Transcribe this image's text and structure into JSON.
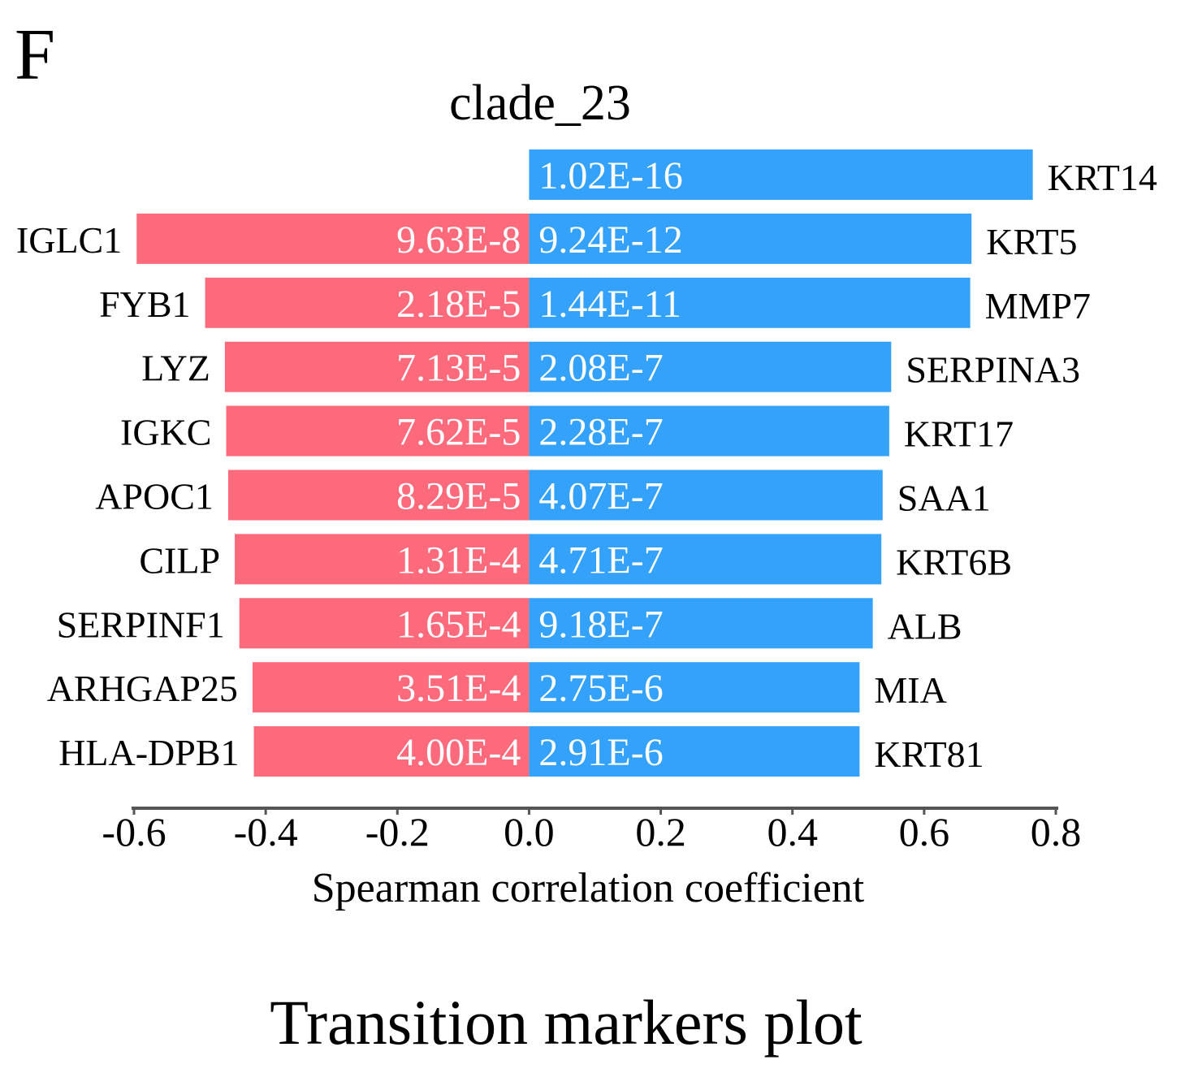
{
  "panel_label": "F",
  "caption": "Transition markers plot",
  "chart_data": {
    "type": "bar",
    "orientation": "horizontal-diverging",
    "title": "clade_23",
    "xlabel": "Spearman correlation coefficient",
    "ylabel": "",
    "xlim": [
      -0.6,
      0.8
    ],
    "xticks": [
      "-0.6",
      "-0.4",
      "-0.2",
      "0.0",
      "0.2",
      "0.4",
      "0.6",
      "0.8"
    ],
    "grid": false,
    "legend": "none",
    "colors": {
      "negative": "#fd6a7b",
      "positive": "#34a1fa",
      "axis": "#555555"
    },
    "series": [
      {
        "values": [
          0.0,
          -0.596,
          -0.492,
          -0.462,
          -0.46,
          -0.457,
          -0.447,
          -0.44,
          -0.42,
          -0.418
        ],
        "labels": [
          "",
          "IGLC1",
          "FYB1",
          "LYZ",
          "IGKC",
          "APOC1",
          "CILP",
          "SERPINF1",
          "ARHGAP25",
          "HLA-DPB1"
        ],
        "pvalues": [
          "",
          "9.63E-8",
          "2.18E-5",
          "7.13E-5",
          "7.62E-5",
          "8.29E-5",
          "1.31E-4",
          "1.65E-4",
          "3.51E-4",
          "4.00E-4"
        ]
      },
      {
        "values": [
          0.765,
          0.672,
          0.67,
          0.55,
          0.547,
          0.537,
          0.535,
          0.522,
          0.502,
          0.502
        ],
        "labels": [
          "KRT14",
          "KRT5",
          "MMP7",
          "SERPINA3",
          "KRT17",
          "SAA1",
          "KRT6B",
          "ALB",
          "MIA",
          "KRT81"
        ],
        "pvalues": [
          "1.02E-16",
          "9.24E-12",
          "1.44E-11",
          "2.08E-7",
          "2.28E-7",
          "4.07E-7",
          "4.71E-7",
          "9.18E-7",
          "2.75E-6",
          "2.91E-6"
        ]
      }
    ]
  }
}
